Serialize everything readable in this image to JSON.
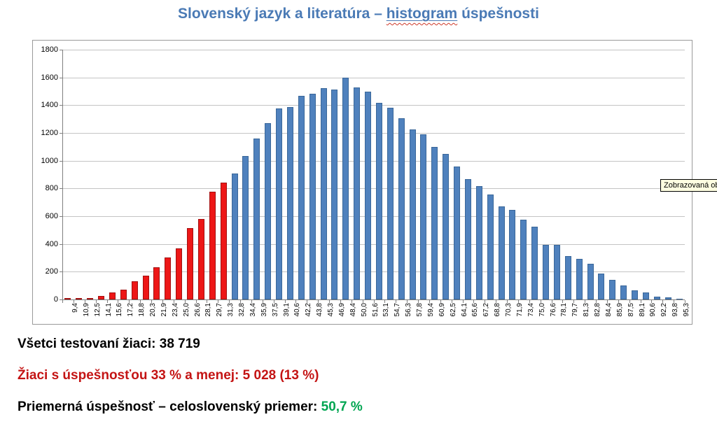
{
  "title": {
    "prefix": "Slovenský jazyk a literatúra – ",
    "highlighted_word": "histogram",
    "suffix": " úspešnosti"
  },
  "tooltip": {
    "text": "Zobrazovaná ob"
  },
  "chart_data": {
    "type": "bar",
    "title": "Slovenský jazyk a literatúra – histogram úspešnosti",
    "xlabel": "",
    "ylabel": "",
    "ylim": [
      0,
      1800
    ],
    "ytick_step": 200,
    "ytick_labels": [
      "0",
      "200",
      "400",
      "600",
      "800",
      "1000",
      "1200",
      "1400",
      "1600",
      "1800"
    ],
    "grid": true,
    "legend": "none",
    "categories": [
      "9,4",
      "10,9",
      "12,5",
      "14,1",
      "15,6",
      "17,2",
      "18,8",
      "20,3",
      "21,9",
      "23,4",
      "25,0",
      "26,6",
      "28,1",
      "29,7",
      "31,3",
      "32,8",
      "34,4",
      "35,9",
      "37,5",
      "39,1",
      "40,6",
      "42,2",
      "43,8",
      "45,3",
      "46,9",
      "48,4",
      "50,0",
      "51,6",
      "53,1",
      "54,7",
      "56,3",
      "57,8",
      "59,4",
      "60,9",
      "62,5",
      "64,1",
      "65,6",
      "67,2",
      "68,8",
      "70,3",
      "71,9",
      "73,4",
      "75,0",
      "76,6",
      "78,1",
      "79,7",
      "81,3",
      "82,8",
      "84,4",
      "85,9",
      "87,5",
      "89,1",
      "90,6",
      "92,2",
      "93,8",
      "95,3"
    ],
    "values": [
      8,
      8,
      12,
      27,
      52,
      72,
      130,
      170,
      230,
      305,
      370,
      515,
      580,
      775,
      840,
      910,
      1035,
      1160,
      1270,
      1375,
      1385,
      1465,
      1480,
      1525,
      1515,
      1600,
      1530,
      1495,
      1415,
      1380,
      1305,
      1225,
      1190,
      1100,
      1050,
      960,
      865,
      815,
      755,
      670,
      645,
      575,
      525,
      395,
      395,
      315,
      290,
      255,
      185,
      140,
      100,
      65,
      48,
      20,
      15,
      2
    ],
    "red_bar_count": 15,
    "colors": {
      "low_fill": "#ed1717",
      "low_border": "#a31010",
      "high_fill": "#4f81bd",
      "high_border": "#3a6799",
      "title": "#4a7ab5",
      "gridline": "#c4c4c4",
      "axis": "#7f7f7f"
    }
  },
  "footer": {
    "line1": "Všetci testovaní žiaci: 38 719",
    "line2": "Žiaci s úspešnosťou 33 % a menej: 5 028 (13 %)",
    "line3_label": "Priemerná úspešnosť – celoslovenský priemer: ",
    "line3_value": "50,7 %"
  }
}
